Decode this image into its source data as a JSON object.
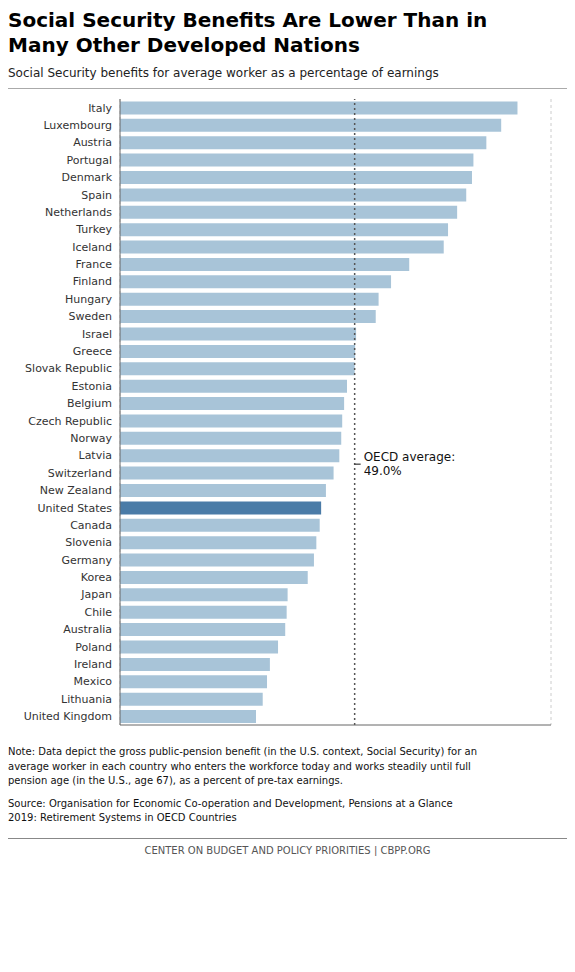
{
  "chart_data": {
    "type": "bar",
    "orientation": "horizontal",
    "title": "Social Security Benefits Are Lower Than in\nMany Other Developed Nations",
    "subtitle": "Social Security benefits for average worker as a percentage of earnings",
    "categories": [
      "Italy",
      "Luxembourg",
      "Austria",
      "Portugal",
      "Denmark",
      "Spain",
      "Netherlands",
      "Turkey",
      "Iceland",
      "France",
      "Finland",
      "Hungary",
      "Sweden",
      "Israel",
      "Greece",
      "Slovak Republic",
      "Estonia",
      "Belgium",
      "Czech Republic",
      "Norway",
      "Latvia",
      "Switzerland",
      "New Zealand",
      "United States",
      "Canada",
      "Slovenia",
      "Germany",
      "Korea",
      "Japan",
      "Chile",
      "Australia",
      "Poland",
      "Ireland",
      "Mexico",
      "Lithuania",
      "United Kingdom"
    ],
    "values": [
      83.0,
      79.6,
      76.5,
      73.8,
      73.5,
      72.3,
      70.4,
      68.5,
      67.6,
      60.4,
      56.6,
      54.0,
      53.4,
      49.3,
      49.1,
      49.0,
      47.4,
      46.8,
      46.4,
      46.2,
      45.8,
      44.6,
      43.0,
      42.0,
      41.7,
      41.0,
      40.5,
      39.2,
      35.0,
      34.8,
      34.5,
      33.0,
      31.3,
      30.7,
      29.8,
      28.4
    ],
    "colors": [
      "#a8c4d8",
      "#a8c4d8",
      "#a8c4d8",
      "#a8c4d8",
      "#a8c4d8",
      "#a8c4d8",
      "#a8c4d8",
      "#a8c4d8",
      "#a8c4d8",
      "#a8c4d8",
      "#a8c4d8",
      "#a8c4d8",
      "#a8c4d8",
      "#a8c4d8",
      "#a8c4d8",
      "#a8c4d8",
      "#a8c4d8",
      "#a8c4d8",
      "#a8c4d8",
      "#a8c4d8",
      "#a8c4d8",
      "#a8c4d8",
      "#a8c4d8",
      "#4a7ba7",
      "#a8c4d8",
      "#a8c4d8",
      "#a8c4d8",
      "#a8c4d8",
      "#a8c4d8",
      "#a8c4d8",
      "#a8c4d8",
      "#a8c4d8",
      "#a8c4d8",
      "#a8c4d8",
      "#a8c4d8",
      "#a8c4d8"
    ],
    "xlim": [
      0,
      90
    ],
    "xticks": [
      0,
      20,
      40,
      60,
      80
    ],
    "grid": true,
    "tick_labels": "y",
    "annotations": [
      {
        "x": 49.0,
        "text": "OECD average:\n49.0%",
        "line_style": "dotted"
      }
    ],
    "note": "Note: Data depict the gross public-pension benefit (in the U.S. context, Social Security) for an\naverage worker in each country who enters the workforce today and works steadily until full\npension age (in the U.S., age 67), as a percent of pre-tax earnings.",
    "source": "Source: Organisation for Economic Co-operation and Development, Pensions at a Glance\n2019: Retirement Systems in OECD Countries",
    "footer": "CENTER ON BUDGET AND POLICY PRIORITIES | CBPP.ORG"
  }
}
